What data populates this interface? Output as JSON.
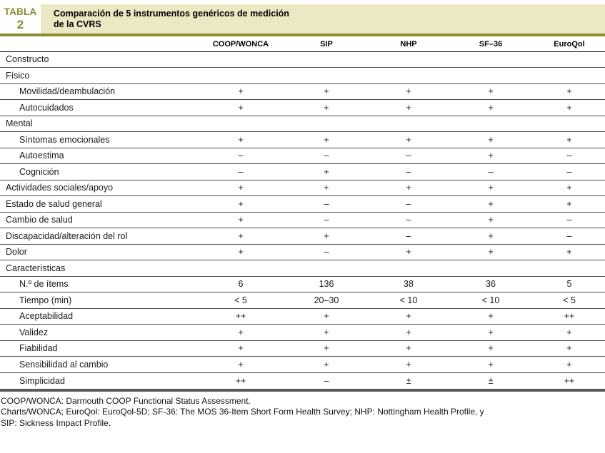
{
  "tag": {
    "word": "TABLA",
    "number": "2"
  },
  "title": {
    "line1": "Comparación de 5 instrumentos genéricos de medición",
    "line2": "de la CVRS"
  },
  "columns": [
    "COOP/WONCA",
    "SIP",
    "NHP",
    "SF–36",
    "EuroQol"
  ],
  "rows": [
    {
      "label": "Constructo",
      "indent": 0,
      "section": true,
      "values": [
        "",
        "",
        "",
        "",
        ""
      ]
    },
    {
      "label": "Físico",
      "indent": 0,
      "section": true,
      "values": [
        "",
        "",
        "",
        "",
        ""
      ]
    },
    {
      "label": "Movilidad/deambulación",
      "indent": 1,
      "section": false,
      "values": [
        "+",
        "+",
        "+",
        "+",
        "+"
      ]
    },
    {
      "label": "Autocuidados",
      "indent": 1,
      "section": false,
      "values": [
        "+",
        "+",
        "+",
        "+",
        "+"
      ]
    },
    {
      "label": "Mental",
      "indent": 0,
      "section": true,
      "values": [
        "",
        "",
        "",
        "",
        ""
      ]
    },
    {
      "label": "Síntomas emocionales",
      "indent": 1,
      "section": false,
      "values": [
        "+",
        "+",
        "+",
        "+",
        "+"
      ]
    },
    {
      "label": "Autoestima",
      "indent": 1,
      "section": false,
      "values": [
        "–",
        "–",
        "–",
        "+",
        "–"
      ]
    },
    {
      "label": "Cognición",
      "indent": 1,
      "section": false,
      "values": [
        "–",
        "+",
        "–",
        "–",
        "–"
      ]
    },
    {
      "label": "Actividades sociales/apoyo",
      "indent": 0,
      "section": false,
      "values": [
        "+",
        "+",
        "+",
        "+",
        "+"
      ]
    },
    {
      "label": "Estado de salud general",
      "indent": 0,
      "section": false,
      "values": [
        "+",
        "–",
        "–",
        "+",
        "+"
      ]
    },
    {
      "label": "Cambio de salud",
      "indent": 0,
      "section": false,
      "values": [
        "+",
        "–",
        "–",
        "+",
        "–"
      ]
    },
    {
      "label": "Discapacidad/alteración del rol",
      "indent": 0,
      "section": false,
      "values": [
        "+",
        "+",
        "–",
        "+",
        "–"
      ]
    },
    {
      "label": "Dolor",
      "indent": 0,
      "section": false,
      "values": [
        "+",
        "–",
        "+",
        "+",
        "+"
      ]
    },
    {
      "label": "Características",
      "indent": 0,
      "section": true,
      "values": [
        "",
        "",
        "",
        "",
        ""
      ]
    },
    {
      "label": "N.º de ítems",
      "indent": 1,
      "section": false,
      "values": [
        "6",
        "136",
        "38",
        "36",
        "5"
      ]
    },
    {
      "label": "Tiempo (min)",
      "indent": 1,
      "section": false,
      "values": [
        "< 5",
        "20–30",
        "< 10",
        "< 10",
        "< 5"
      ]
    },
    {
      "label": "Aceptabilidad",
      "indent": 1,
      "section": false,
      "values": [
        "++",
        "+",
        "+",
        "+",
        "++"
      ]
    },
    {
      "label": "Validez",
      "indent": 1,
      "section": false,
      "values": [
        "+",
        "+",
        "+",
        "+",
        "+"
      ]
    },
    {
      "label": "Fiabilidad",
      "indent": 1,
      "section": false,
      "values": [
        "+",
        "+",
        "+",
        "+",
        "+"
      ]
    },
    {
      "label": "Sensibilidad al cambio",
      "indent": 1,
      "section": false,
      "values": [
        "+",
        "+",
        "+",
        "+",
        "+"
      ]
    },
    {
      "label": "Simplicidad",
      "indent": 1,
      "section": false,
      "values": [
        "++",
        "–",
        "±",
        "±",
        "++"
      ]
    }
  ],
  "footnotes": [
    "COOP/WONCA: Darmouth COOP Functional Status Assessment.",
    "Charts/WONCA; EuroQol: EuroQol-5D; SF-36: The MOS 36-Item Short Form Health Survey; NHP: Nottingham Health Profile, y",
    "SIP: Sickness Impact Profile."
  ],
  "colors": {
    "accent_olive": "#8a8a2e",
    "banner_background": "#ece8c3",
    "row_line": "#4d4d4d",
    "bottom_rule": "#5a5a5a",
    "text": "#1a1a1a"
  }
}
